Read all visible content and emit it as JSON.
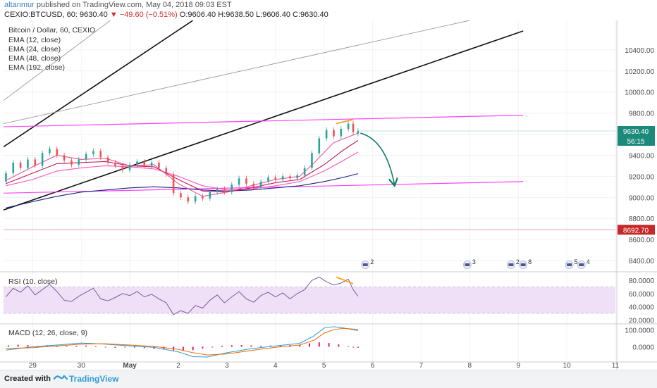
{
  "header": {
    "user": "altanmur",
    "published": "published on TradingView.com, May 04, 2018 09:03 EST",
    "symbol": "CEXIO:BTCUSD, 60",
    "price": "9630.40",
    "change": "−49.60 (−0.51%)",
    "ohlc": "O:9606.40 H:9638.50 L:9606.40 C:9630.40"
  },
  "footer": {
    "created": "Created with",
    "brand": "TradingView"
  },
  "colors": {
    "candle_up": "#26a69a",
    "candle_down": "#ef5350",
    "pink": "#ff40ff",
    "ema12": "#e8549a",
    "ema24": "#c2185b",
    "ema48": "#ff52b8",
    "ema192": "#1a237e",
    "channel": "#111111",
    "channel_thin": "#999999",
    "arrow": "#13806b",
    "orange": "#ff9800",
    "rsi_line": "#7e5b9a",
    "rsi_band": "#efe0f7",
    "macd_line": "#2a9bd4",
    "signal_line": "#ef6c00",
    "hist": "#e51974",
    "support_level": "#c62828"
  },
  "chart_data": [
    {
      "type": "candlestick",
      "title": "Bitcoin / Dollar, 60, CEXIO",
      "legend": [
        "EMA (12, close)",
        "EMA (24, close)",
        "EMA (48, close)",
        "EMA (192, close)"
      ],
      "x_ticks": [
        "29",
        "30",
        "May",
        "2",
        "3",
        "4",
        "5",
        "6",
        "7",
        "8",
        "9",
        "10",
        "11"
      ],
      "y_ticks": [
        "10400.00",
        "10200.00",
        "10000.00",
        "9800.00",
        "9600.00",
        "9400.00",
        "9200.00",
        "9000.00",
        "8800.00",
        "8600.00",
        "8400.00"
      ],
      "ylim": [
        8300,
        10680
      ],
      "price_label": "9630.40",
      "countdown_label": "56:15",
      "level_label": "8692.70",
      "level": 8692.7,
      "candles": [
        {
          "x": 28.45,
          "o": 9150,
          "c": 9230
        },
        {
          "x": 28.6,
          "o": 9230,
          "c": 9330
        },
        {
          "x": 28.75,
          "o": 9330,
          "c": 9280
        },
        {
          "x": 28.9,
          "o": 9280,
          "c": 9360
        },
        {
          "x": 29.05,
          "o": 9360,
          "c": 9300
        },
        {
          "x": 29.2,
          "o": 9300,
          "c": 9420
        },
        {
          "x": 29.35,
          "o": 9420,
          "c": 9460
        },
        {
          "x": 29.5,
          "o": 9460,
          "c": 9400
        },
        {
          "x": 29.65,
          "o": 9400,
          "c": 9350
        },
        {
          "x": 29.8,
          "o": 9350,
          "c": 9310
        },
        {
          "x": 29.95,
          "o": 9310,
          "c": 9360
        },
        {
          "x": 30.1,
          "o": 9360,
          "c": 9410
        },
        {
          "x": 30.25,
          "o": 9410,
          "c": 9440
        },
        {
          "x": 30.4,
          "o": 9440,
          "c": 9380
        },
        {
          "x": 30.55,
          "o": 9380,
          "c": 9330
        },
        {
          "x": 30.7,
          "o": 9330,
          "c": 9300
        },
        {
          "x": 30.85,
          "o": 9300,
          "c": 9260
        },
        {
          "x": 31.0,
          "o": 9260,
          "c": 9310
        },
        {
          "x": 31.15,
          "o": 9310,
          "c": 9340
        },
        {
          "x": 31.3,
          "o": 9340,
          "c": 9300
        },
        {
          "x": 31.45,
          "o": 9300,
          "c": 9330
        },
        {
          "x": 31.6,
          "o": 9330,
          "c": 9280
        },
        {
          "x": 31.75,
          "o": 9280,
          "c": 9220
        },
        {
          "x": 31.9,
          "o": 9220,
          "c": 9040
        },
        {
          "x": 32.05,
          "o": 9040,
          "c": 9000
        },
        {
          "x": 32.2,
          "o": 9000,
          "c": 8960
        },
        {
          "x": 32.35,
          "o": 8960,
          "c": 9010
        },
        {
          "x": 32.5,
          "o": 9010,
          "c": 8990
        },
        {
          "x": 32.65,
          "o": 8990,
          "c": 9050
        },
        {
          "x": 32.8,
          "o": 9050,
          "c": 9080
        },
        {
          "x": 32.95,
          "o": 9080,
          "c": 9050
        },
        {
          "x": 33.1,
          "o": 9050,
          "c": 9120
        },
        {
          "x": 33.25,
          "o": 9120,
          "c": 9180
        },
        {
          "x": 33.4,
          "o": 9180,
          "c": 9130
        },
        {
          "x": 33.55,
          "o": 9130,
          "c": 9100
        },
        {
          "x": 33.7,
          "o": 9100,
          "c": 9150
        },
        {
          "x": 33.85,
          "o": 9150,
          "c": 9190
        },
        {
          "x": 34.0,
          "o": 9190,
          "c": 9170
        },
        {
          "x": 34.15,
          "o": 9170,
          "c": 9200
        },
        {
          "x": 34.3,
          "o": 9200,
          "c": 9180
        },
        {
          "x": 34.45,
          "o": 9180,
          "c": 9210
        },
        {
          "x": 34.6,
          "o": 9210,
          "c": 9280
        },
        {
          "x": 34.75,
          "o": 9280,
          "c": 9420
        },
        {
          "x": 34.9,
          "o": 9420,
          "c": 9560
        },
        {
          "x": 35.05,
          "o": 9560,
          "c": 9640
        },
        {
          "x": 35.2,
          "o": 9640,
          "c": 9580
        },
        {
          "x": 35.35,
          "o": 9580,
          "c": 9650
        },
        {
          "x": 35.5,
          "o": 9650,
          "c": 9700
        },
        {
          "x": 35.6,
          "o": 9700,
          "c": 9620
        },
        {
          "x": 35.7,
          "o": 9606.4,
          "c": 9630.4
        }
      ],
      "ema12": [
        [
          28.45,
          9160
        ],
        [
          29.0,
          9290
        ],
        [
          29.5,
          9400
        ],
        [
          30.0,
          9360
        ],
        [
          30.5,
          9370
        ],
        [
          31.0,
          9300
        ],
        [
          31.5,
          9310
        ],
        [
          32.0,
          9130
        ],
        [
          32.5,
          9010
        ],
        [
          33.0,
          9050
        ],
        [
          33.5,
          9110
        ],
        [
          34.0,
          9170
        ],
        [
          34.5,
          9200
        ],
        [
          34.8,
          9330
        ],
        [
          35.2,
          9520
        ],
        [
          35.7,
          9610
        ]
      ],
      "ema24": [
        [
          28.45,
          9130
        ],
        [
          29.0,
          9230
        ],
        [
          29.5,
          9320
        ],
        [
          30.0,
          9330
        ],
        [
          30.5,
          9340
        ],
        [
          31.0,
          9300
        ],
        [
          31.5,
          9290
        ],
        [
          32.0,
          9170
        ],
        [
          32.5,
          9060
        ],
        [
          33.0,
          9050
        ],
        [
          33.5,
          9090
        ],
        [
          34.0,
          9140
        ],
        [
          34.5,
          9170
        ],
        [
          35.0,
          9310
        ],
        [
          35.4,
          9450
        ],
        [
          35.7,
          9540
        ]
      ],
      "ema48": [
        [
          28.45,
          9110
        ],
        [
          29.0,
          9170
        ],
        [
          29.5,
          9250
        ],
        [
          30.0,
          9280
        ],
        [
          30.5,
          9300
        ],
        [
          31.0,
          9290
        ],
        [
          31.5,
          9270
        ],
        [
          32.0,
          9200
        ],
        [
          32.5,
          9110
        ],
        [
          33.0,
          9070
        ],
        [
          33.5,
          9080
        ],
        [
          34.0,
          9110
        ],
        [
          34.5,
          9150
        ],
        [
          35.0,
          9250
        ],
        [
          35.4,
          9350
        ],
        [
          35.7,
          9430
        ]
      ],
      "ema192": [
        [
          28.45,
          8900
        ],
        [
          29.0,
          8960
        ],
        [
          29.5,
          9010
        ],
        [
          30.0,
          9050
        ],
        [
          30.5,
          9070
        ],
        [
          31.0,
          9090
        ],
        [
          31.5,
          9100
        ],
        [
          32.0,
          9090
        ],
        [
          32.5,
          9070
        ],
        [
          33.0,
          9060
        ],
        [
          33.5,
          9070
        ],
        [
          34.0,
          9090
        ],
        [
          34.5,
          9110
        ],
        [
          35.0,
          9150
        ],
        [
          35.4,
          9190
        ],
        [
          35.7,
          9225
        ]
      ],
      "pink_lines": [
        {
          "from": [
            28.4,
            9670
          ],
          "to": [
            39.1,
            9780
          ]
        },
        {
          "from": [
            28.4,
            9040
          ],
          "to": [
            39.1,
            9150
          ]
        }
      ],
      "channel_lines": [
        {
          "from": [
            28.4,
            8880
          ],
          "to": [
            39.1,
            10580
          ],
          "weight": "thick"
        },
        {
          "from": [
            28.4,
            9480
          ],
          "to": [
            32.3,
            10680
          ],
          "weight": "thick"
        },
        {
          "from": [
            28.4,
            9920
          ],
          "to": [
            30.6,
            10680
          ],
          "weight": "thin"
        },
        {
          "from": [
            28.4,
            9700
          ],
          "to": [
            38.0,
            10680
          ],
          "weight": "thin"
        }
      ],
      "annotations": [
        {
          "type": "trendline",
          "from": [
            35.25,
            9700
          ],
          "to": [
            35.6,
            9740
          ],
          "color": "orange"
        },
        {
          "type": "arrow",
          "from": [
            35.75,
            9610
          ],
          "to": [
            36.45,
            9120
          ],
          "color": "arrow"
        }
      ],
      "event_markers": [
        {
          "x": 35.85,
          "label": "2"
        },
        {
          "x": 37.95,
          "label": "3"
        },
        {
          "x": 38.85,
          "label": "2"
        },
        {
          "x": 39.1,
          "label": "8"
        },
        {
          "x": 40.05,
          "label": "5"
        },
        {
          "x": 40.3,
          "label": "4"
        }
      ]
    },
    {
      "type": "line",
      "title": "RSI (10, close)",
      "y_ticks": [
        "80.0000",
        "60.0000",
        "40.0000",
        "20.0000"
      ],
      "ylim": [
        15,
        92
      ],
      "band": [
        30,
        70
      ],
      "series": [
        {
          "x": [
            28.45,
            28.6,
            28.75,
            28.9,
            29.05,
            29.2,
            29.35,
            29.5,
            29.65,
            29.8,
            29.95,
            30.1,
            30.25,
            30.4,
            30.55,
            30.7,
            30.85,
            31.0,
            31.15,
            31.3,
            31.45,
            31.6,
            31.75,
            31.9,
            32.05,
            32.2,
            32.35,
            32.5,
            32.65,
            32.8,
            32.95,
            33.1,
            33.25,
            33.4,
            33.55,
            33.7,
            33.85,
            34.0,
            34.15,
            34.3,
            34.45,
            34.6,
            34.75,
            34.9,
            35.05,
            35.2,
            35.35,
            35.5,
            35.6,
            35.7
          ],
          "y": [
            55,
            68,
            62,
            72,
            58,
            66,
            74,
            63,
            50,
            48,
            56,
            62,
            68,
            52,
            49,
            54,
            60,
            57,
            63,
            55,
            59,
            52,
            46,
            28,
            34,
            30,
            42,
            38,
            50,
            58,
            46,
            55,
            63,
            52,
            47,
            57,
            62,
            55,
            61,
            52,
            60,
            66,
            80,
            85,
            78,
            73,
            76,
            82,
            66,
            56
          ]
        }
      ],
      "trendline": {
        "from": [
          35.25,
          85
        ],
        "to": [
          35.6,
          75
        ]
      }
    },
    {
      "type": "line",
      "title": "MACD (12, 26, close, 9)",
      "y_ticks": [
        "100.0000",
        "0.0000"
      ],
      "ylim": [
        -85,
        130
      ],
      "series": [
        {
          "name": "MACD",
          "x": [
            28.45,
            29.0,
            29.5,
            30.0,
            30.5,
            31.0,
            31.5,
            32.0,
            32.3,
            32.6,
            33.0,
            33.5,
            34.0,
            34.5,
            34.8,
            35.0,
            35.2,
            35.4,
            35.7
          ],
          "y": [
            -20,
            0,
            10,
            22,
            15,
            5,
            -3,
            -30,
            -58,
            -60,
            -35,
            -12,
            5,
            20,
            65,
            110,
            118,
            110,
            95
          ]
        },
        {
          "name": "Signal",
          "x": [
            28.45,
            29.0,
            29.5,
            30.0,
            30.5,
            31.0,
            31.5,
            32.0,
            32.3,
            32.6,
            33.0,
            33.5,
            34.0,
            34.5,
            34.8,
            35.0,
            35.2,
            35.4,
            35.7
          ],
          "y": [
            -10,
            -5,
            5,
            15,
            18,
            10,
            2,
            -15,
            -35,
            -48,
            -42,
            -22,
            -3,
            10,
            40,
            80,
            100,
            108,
            102
          ]
        }
      ],
      "histogram": [
        {
          "x": 28.5,
          "v": 8
        },
        {
          "x": 28.7,
          "v": 12
        },
        {
          "x": 28.9,
          "v": 10
        },
        {
          "x": 29.1,
          "v": 6
        },
        {
          "x": 29.3,
          "v": 9
        },
        {
          "x": 29.5,
          "v": 5
        },
        {
          "x": 29.7,
          "v": 3
        },
        {
          "x": 29.9,
          "v": 6
        },
        {
          "x": 30.1,
          "v": 7
        },
        {
          "x": 30.3,
          "v": 2
        },
        {
          "x": 30.5,
          "v": -3
        },
        {
          "x": 30.7,
          "v": -6
        },
        {
          "x": 30.9,
          "v": -4
        },
        {
          "x": 31.1,
          "v": -5
        },
        {
          "x": 31.3,
          "v": -8
        },
        {
          "x": 31.5,
          "v": -12
        },
        {
          "x": 31.7,
          "v": -16
        },
        {
          "x": 31.9,
          "v": -22
        },
        {
          "x": 32.1,
          "v": -24
        },
        {
          "x": 32.3,
          "v": -20
        },
        {
          "x": 32.5,
          "v": -10
        },
        {
          "x": 32.7,
          "v": -4
        },
        {
          "x": 32.9,
          "v": 6
        },
        {
          "x": 33.1,
          "v": 9
        },
        {
          "x": 33.3,
          "v": 10
        },
        {
          "x": 33.5,
          "v": 8
        },
        {
          "x": 33.7,
          "v": 6
        },
        {
          "x": 33.9,
          "v": 7
        },
        {
          "x": 34.1,
          "v": 8
        },
        {
          "x": 34.3,
          "v": 10
        },
        {
          "x": 34.5,
          "v": 12
        },
        {
          "x": 34.7,
          "v": 20
        },
        {
          "x": 34.9,
          "v": 26
        },
        {
          "x": 35.1,
          "v": 22
        },
        {
          "x": 35.3,
          "v": 14
        },
        {
          "x": 35.5,
          "v": 4
        },
        {
          "x": 35.6,
          "v": -3
        },
        {
          "x": 35.7,
          "v": -6
        }
      ]
    }
  ]
}
